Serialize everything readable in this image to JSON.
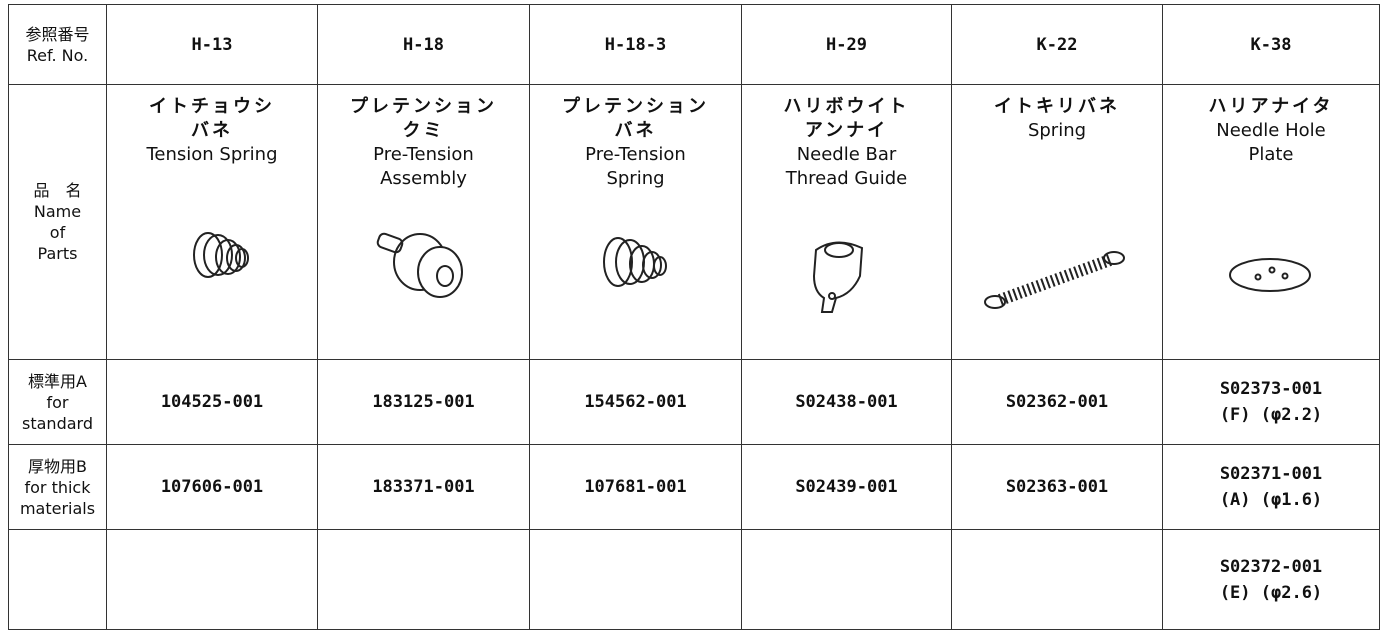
{
  "table": {
    "ref_label": [
      "参照番号",
      "Ref. No."
    ],
    "name_label": [
      "品　名",
      "Name",
      "of",
      "Parts"
    ],
    "standard_label": [
      "標準用A",
      "for",
      "standard"
    ],
    "thick_label": [
      "厚物用B",
      "for thick",
      "materials"
    ],
    "columns": [
      {
        "ref": "H-13",
        "name_ja": [
          "イトチョウシ",
          "バネ"
        ],
        "name_en": [
          "Tension Spring"
        ],
        "standard": [
          "104525-001"
        ],
        "thick": [
          "107606-001"
        ]
      },
      {
        "ref": "H-18",
        "name_ja": [
          "プレテンション",
          "クミ"
        ],
        "name_en": [
          "Pre-Tension",
          "Assembly"
        ],
        "standard": [
          "183125-001"
        ],
        "thick": [
          "183371-001"
        ]
      },
      {
        "ref": "H-18-3",
        "name_ja": [
          "プレテンション",
          "バネ"
        ],
        "name_en": [
          "Pre-Tension",
          "Spring"
        ],
        "standard": [
          "154562-001"
        ],
        "thick": [
          "107681-001"
        ]
      },
      {
        "ref": "H-29",
        "name_ja": [
          "ハリボウイト",
          "アンナイ"
        ],
        "name_en": [
          "Needle Bar",
          "Thread Guide"
        ],
        "standard": [
          "S02438-001"
        ],
        "thick": [
          "S02439-001"
        ]
      },
      {
        "ref": "K-22",
        "name_ja": [
          "イトキリバネ"
        ],
        "name_en": [
          "Spring"
        ],
        "standard": [
          "S02362-001"
        ],
        "thick": [
          "S02363-001"
        ]
      },
      {
        "ref": "K-38",
        "name_ja": [
          "ハリアナイタ"
        ],
        "name_en": [
          "Needle Hole",
          "Plate"
        ],
        "standard": [
          "S02373-001",
          "(F) (φ2.2)"
        ],
        "thick": [
          "S02371-001",
          "(A) (φ1.6)"
        ],
        "extra": [
          "S02372-001",
          "(E) (φ2.6)"
        ]
      }
    ]
  }
}
